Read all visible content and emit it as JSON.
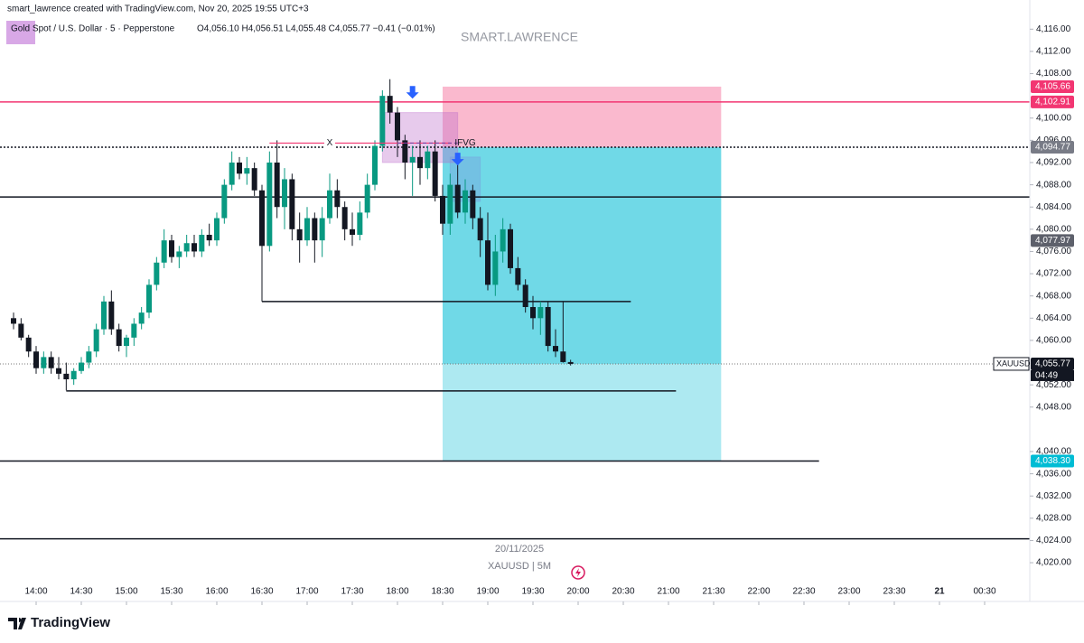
{
  "header": {
    "credit": "smart_lawrence created with TradingView.com, Nov 20, 2025 19:55 UTC+3",
    "symbol": "Gold Spot / U.S. Dollar · 5 · Pepperstone",
    "ohlc": "O4,056.10 H4,056.51 L4,055.48 C4,055.77 −0.41 (−0.01%)",
    "watermark": "SMART.LAWRENCE",
    "date": "20/11/2025",
    "interval": "XAUUSD | 5M",
    "brand": "TradingView"
  },
  "chart_data": {
    "type": "candlestick",
    "x": [
      "13:45",
      "13:50",
      "13:55",
      "14:00",
      "14:05",
      "14:10",
      "14:15",
      "14:20",
      "14:25",
      "14:30",
      "14:35",
      "14:40",
      "14:45",
      "14:50",
      "14:55",
      "15:00",
      "15:05",
      "15:10",
      "15:15",
      "15:20",
      "15:25",
      "15:30",
      "15:35",
      "15:40",
      "15:45",
      "15:50",
      "15:55",
      "16:00",
      "16:05",
      "16:10",
      "16:15",
      "16:20",
      "16:25",
      "16:30",
      "16:35",
      "16:40",
      "16:45",
      "16:50",
      "16:55",
      "17:00",
      "17:05",
      "17:10",
      "17:15",
      "17:20",
      "17:25",
      "17:30",
      "17:35",
      "17:40",
      "17:45",
      "17:50",
      "17:55",
      "18:00",
      "18:05",
      "18:10",
      "18:15",
      "18:20",
      "18:25",
      "18:30",
      "18:35",
      "18:40",
      "18:45",
      "18:50",
      "18:55",
      "19:00",
      "19:05",
      "19:10",
      "19:15",
      "19:20",
      "19:25",
      "19:30",
      "19:35",
      "19:40",
      "19:45",
      "19:50",
      "19:55"
    ],
    "open": [
      4064,
      4063,
      4060.5,
      4058,
      4055,
      4057,
      4055,
      4054,
      4053,
      4054.5,
      4056,
      4058,
      4062,
      4067,
      4062,
      4059,
      4060.5,
      4063,
      4065,
      4070,
      4074,
      4078,
      4075,
      4076,
      4077.5,
      4076,
      4079,
      4078,
      4082,
      4088,
      4092,
      4090,
      4091,
      4087,
      4077,
      4092,
      4084,
      4089,
      4080,
      4078,
      4082,
      4078,
      4082,
      4087,
      4084,
      4080,
      4079,
      4083,
      4088,
      4095,
      4104,
      4101,
      4096,
      4092,
      4093,
      4091,
      4094,
      4086,
      4081,
      4088,
      4083,
      4087,
      4082,
      4078,
      4070,
      4076,
      4080,
      4073,
      4070,
      4066,
      4064,
      4066,
      4059,
      4058,
      4056.1
    ],
    "high": [
      4065,
      4064,
      4061,
      4059,
      4058,
      4058,
      4057,
      4056,
      4055,
      4057,
      4059,
      4063,
      4068,
      4069,
      4063,
      4061,
      4064,
      4066,
      4071,
      4075,
      4080,
      4079,
      4077,
      4079,
      4079,
      4080,
      4081,
      4083,
      4089,
      4094,
      4093,
      4093,
      4092,
      4088,
      4094,
      4096,
      4091,
      4090,
      4083,
      4084,
      4083,
      4084,
      4090,
      4089,
      4085,
      4083,
      4085,
      4090,
      4096,
      4105,
      4107,
      4102,
      4097,
      4095,
      4096,
      4095,
      4096,
      4088,
      4090,
      4092,
      4089,
      4088,
      4084,
      4083,
      4079,
      4082,
      4081,
      4075,
      4071,
      4068,
      4067,
      4067,
      4062,
      4067,
      4056.51
    ],
    "low": [
      4062,
      4060,
      4057,
      4054,
      4054,
      4054,
      4053,
      4051,
      4052,
      4054,
      4055,
      4057,
      4061,
      4061,
      4058,
      4057,
      4059,
      4062,
      4064,
      4069,
      4073,
      4074,
      4073,
      4075,
      4075,
      4075,
      4077,
      4077,
      4081,
      4087,
      4089,
      4088,
      4086,
      4067,
      4076,
      4082,
      4080,
      4078,
      4074,
      4077,
      4074,
      4075,
      4081,
      4082,
      4078,
      4077,
      4078,
      4082,
      4087,
      4094,
      4099,
      4093,
      4089,
      4086,
      4088,
      4089,
      4085,
      4079,
      4079,
      4082,
      4081,
      4080,
      4075,
      4069,
      4068,
      4074,
      4072,
      4069,
      4065,
      4062,
      4061,
      4058,
      4057,
      4056,
      4055.48
    ],
    "close": [
      4063,
      4060.5,
      4058,
      4055,
      4057,
      4055,
      4054,
      4053,
      4054.5,
      4056,
      4058,
      4062,
      4067,
      4062,
      4059,
      4060.5,
      4063,
      4065,
      4070,
      4074,
      4078,
      4075,
      4076,
      4077.5,
      4076,
      4079,
      4078,
      4082,
      4088,
      4092,
      4090,
      4091,
      4087,
      4077,
      4092,
      4084,
      4089,
      4080,
      4078,
      4082,
      4078,
      4082,
      4087,
      4084,
      4080,
      4079,
      4083,
      4088,
      4095,
      4104,
      4101,
      4096,
      4092,
      4093,
      4091,
      4094,
      4086,
      4081,
      4088,
      4083,
      4087,
      4082,
      4078,
      4070,
      4076,
      4080,
      4073,
      4070,
      4066,
      4064,
      4066,
      4059,
      4058,
      4056.1,
      4055.77
    ],
    "up_color": "#089981",
    "down_color": "#131722",
    "xlim": [
      "13:36",
      "01:00"
    ],
    "xticks": [
      "14:00",
      "14:30",
      "15:00",
      "15:30",
      "16:00",
      "16:30",
      "17:00",
      "17:30",
      "18:00",
      "18:30",
      "19:00",
      "19:30",
      "20:00",
      "20:30",
      "21:00",
      "21:30",
      "22:00",
      "22:30",
      "23:00",
      "23:30",
      {
        "value": "00:00",
        "label": "21"
      },
      "00:30"
    ],
    "ylim": [
      4014,
      4118
    ],
    "yticks": [
      {
        "value": 4020,
        "label": "4,020.00"
      },
      {
        "value": 4024,
        "label": "4,024.00"
      },
      {
        "value": 4028,
        "label": "4,028.00"
      },
      {
        "value": 4032,
        "label": "4,032.00"
      },
      {
        "value": 4036,
        "label": "4,036.00"
      },
      {
        "value": 4040,
        "label": "4,040.00"
      },
      {
        "value": 4048,
        "label": "4,048.00"
      },
      {
        "value": 4052,
        "label": "4,052.00"
      },
      {
        "value": 4060,
        "label": "4,060.00"
      },
      {
        "value": 4064,
        "label": "4,064.00"
      },
      {
        "value": 4068,
        "label": "4,068.00"
      },
      {
        "value": 4072,
        "label": "4,072.00"
      },
      {
        "value": 4076,
        "label": "4,076.00"
      },
      {
        "value": 4080,
        "label": "4,080.00"
      },
      {
        "value": 4084,
        "label": "4,084.00"
      },
      {
        "value": 4088,
        "label": "4,088.00"
      },
      {
        "value": 4092,
        "label": "4,092.00"
      },
      {
        "value": 4096,
        "label": "4,096.00"
      },
      {
        "value": 4100,
        "label": "4,100.00"
      },
      {
        "value": 4108,
        "label": "4,108.00"
      },
      {
        "value": 4112,
        "label": "4,112.00"
      },
      {
        "value": 4116,
        "label": "4,116.00"
      }
    ],
    "position": {
      "from": "18:30",
      "to": "21:35",
      "entry": 4094.77,
      "stop": 4105.66,
      "target": 4038.3,
      "current": 4055.77
    },
    "levels": [
      {
        "value": 4102.91,
        "from": "13:36",
        "to": "01:00",
        "color": "#f23672",
        "style": "solid"
      },
      {
        "value": 4094.77,
        "from": "13:36",
        "to": "01:00",
        "color": "#131722",
        "style": "dotted"
      },
      {
        "value": 4055.77,
        "from": "13:36",
        "to": "01:00",
        "color": "#777777",
        "style": "fine"
      },
      {
        "value": 4085.8,
        "from": "13:36",
        "to": "01:00",
        "color": "#131722",
        "style": "solid"
      },
      {
        "value": 4067,
        "from": "16:30",
        "to": "20:35",
        "color": "#131722",
        "style": "solid"
      },
      {
        "value": 4050.9,
        "from": "14:20",
        "to": "21:05",
        "color": "#131722",
        "style": "solid"
      },
      {
        "value": 4038.3,
        "from": "13:36",
        "to": "22:40",
        "color": "#131722",
        "style": "solid"
      },
      {
        "value": 4024.3,
        "from": "13:36",
        "to": "01:00",
        "color": "#131722",
        "style": "solid"
      }
    ],
    "zones": [
      {
        "from": "17:50",
        "to": "18:40",
        "low": 4092,
        "high": 4101,
        "color": "rgba(186,104,200,0.35)"
      },
      {
        "from": "18:35",
        "to": "18:55",
        "low": 4085,
        "high": 4093,
        "color": "rgba(120,150,220,0.35)"
      }
    ],
    "marks": [
      {
        "text": "X",
        "value": 4095.5,
        "from": "16:35",
        "to": "18:35",
        "at": "17:15",
        "color": "#f23672"
      },
      {
        "text": "IFVG",
        "value": 4095.5,
        "from": "18:00",
        "to": "18:40",
        "at": "18:45",
        "color": "#7b3fa0"
      }
    ],
    "arrows": [
      {
        "time": "18:10",
        "value": 4103.5
      },
      {
        "time": "18:40",
        "value": 4091.5
      }
    ],
    "price_labels": [
      {
        "value": 4105.66,
        "label": "4,105.66",
        "color": "#f23672"
      },
      {
        "value": 4102.91,
        "label": "4,102.91",
        "color": "#f23672"
      },
      {
        "value": 4094.77,
        "label": "4,094.77",
        "color": "#787b86"
      },
      {
        "value": 4077.97,
        "label": "4,077.97",
        "color": "#5d606b"
      },
      {
        "value": 4055.77,
        "label": "4,055.77",
        "color": "#131722",
        "tag": "XAUUSD",
        "countdown": "04:49"
      },
      {
        "value": 4038.3,
        "label": "4,038.30",
        "color": "#00bcd4"
      }
    ]
  }
}
